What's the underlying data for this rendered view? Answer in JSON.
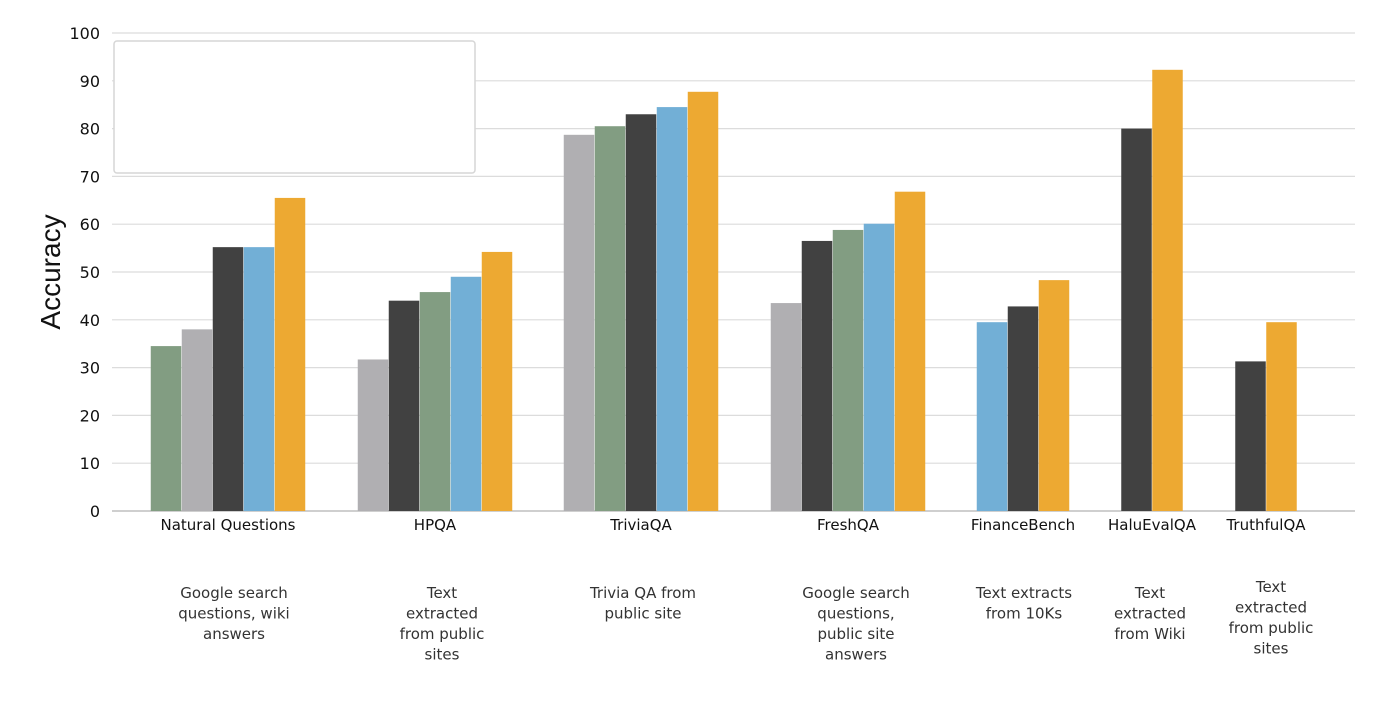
{
  "chart_data": {
    "type": "bar",
    "ylabel": "Accuracy",
    "ylim": [
      0,
      100
    ],
    "yticks": [
      0,
      10,
      20,
      30,
      40,
      50,
      60,
      70,
      80,
      90,
      100
    ],
    "grid": true,
    "legend": "top-left (empty box)",
    "colors": {
      "gray": "#b0afb2",
      "sage": "#829d82",
      "dark": "#414141",
      "blue": "#72afd6",
      "orange": "#eda932"
    },
    "groups": [
      {
        "category": "Natural Questions",
        "description": [
          "Google search",
          "questions, wiki",
          "answers"
        ],
        "bars": [
          {
            "value": 34.5,
            "color": "sage"
          },
          {
            "value": 38.0,
            "color": "gray"
          },
          {
            "value": 55.2,
            "color": "dark"
          },
          {
            "value": 55.2,
            "color": "blue"
          },
          {
            "value": 65.5,
            "color": "orange"
          }
        ]
      },
      {
        "category": "HPQA",
        "description": [
          "Text",
          "extracted",
          "from public",
          "sites"
        ],
        "bars": [
          {
            "value": 31.7,
            "color": "gray"
          },
          {
            "value": 44.0,
            "color": "dark"
          },
          {
            "value": 45.8,
            "color": "sage"
          },
          {
            "value": 49.0,
            "color": "blue"
          },
          {
            "value": 54.2,
            "color": "orange"
          }
        ]
      },
      {
        "category": "TriviaQA",
        "description": [
          "Trivia QA from",
          "public site"
        ],
        "bars": [
          {
            "value": 78.7,
            "color": "gray"
          },
          {
            "value": 80.5,
            "color": "sage"
          },
          {
            "value": 83.0,
            "color": "dark"
          },
          {
            "value": 84.5,
            "color": "blue"
          },
          {
            "value": 87.7,
            "color": "orange"
          }
        ]
      },
      {
        "category": "FreshQA",
        "description": [
          "Google search",
          "questions,",
          "public site",
          "answers"
        ],
        "bars": [
          {
            "value": 43.5,
            "color": "gray"
          },
          {
            "value": 56.5,
            "color": "dark"
          },
          {
            "value": 58.8,
            "color": "sage"
          },
          {
            "value": 60.1,
            "color": "blue"
          },
          {
            "value": 66.8,
            "color": "orange"
          }
        ]
      },
      {
        "category": "FinanceBench",
        "description": [
          "Text extracts",
          "from 10Ks"
        ],
        "bars": [
          {
            "value": 39.5,
            "color": "blue"
          },
          {
            "value": 42.8,
            "color": "dark"
          },
          {
            "value": 48.3,
            "color": "orange"
          }
        ]
      },
      {
        "category": "HaluEvalQA",
        "description": [
          "Text",
          "extracted",
          "from Wiki"
        ],
        "bars": [
          {
            "value": 80.0,
            "color": "dark"
          },
          {
            "value": 92.3,
            "color": "orange"
          }
        ]
      },
      {
        "category": "TruthfulQA",
        "description": [
          "Text",
          "extracted",
          "from public",
          "sites"
        ],
        "bars": [
          {
            "value": 31.3,
            "color": "dark"
          },
          {
            "value": 39.5,
            "color": "orange"
          }
        ]
      }
    ]
  }
}
